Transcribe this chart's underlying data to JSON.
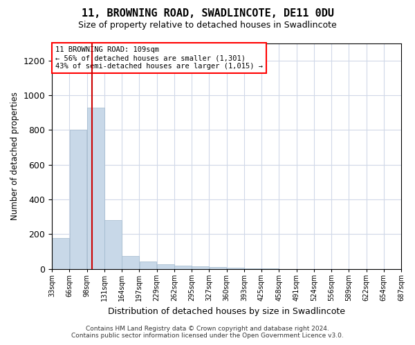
{
  "title": "11, BROWNING ROAD, SWADLINCOTE, DE11 0DU",
  "subtitle": "Size of property relative to detached houses in Swadlincote",
  "xlabel": "Distribution of detached houses by size in Swadlincote",
  "ylabel": "Number of detached properties",
  "annotation_line1": "11 BROWNING ROAD: 109sqm",
  "annotation_line2": "← 56% of detached houses are smaller (1,301)",
  "annotation_line3": "43% of semi-detached houses are larger (1,015) →",
  "footer1": "Contains HM Land Registry data © Crown copyright and database right 2024.",
  "footer2": "Contains public sector information licensed under the Open Government Licence v3.0.",
  "bar_color": "#c8d8e8",
  "bar_edgecolor": "#a0b8cc",
  "vline_color": "#cc0000",
  "vline_x": 109,
  "bin_starts": [
    33,
    66,
    99,
    132,
    165,
    198,
    231,
    264,
    297,
    330,
    363,
    396,
    429,
    462,
    495,
    528,
    561,
    594,
    627,
    660
  ],
  "bin_labels": [
    "33sqm",
    "66sqm",
    "98sqm",
    "131sqm",
    "164sqm",
    "197sqm",
    "229sqm",
    "262sqm",
    "295sqm",
    "327sqm",
    "360sqm",
    "393sqm",
    "425sqm",
    "458sqm",
    "491sqm",
    "524sqm",
    "556sqm",
    "589sqm",
    "622sqm",
    "654sqm",
    "687sqm"
  ],
  "bar_heights": [
    180,
    800,
    930,
    280,
    75,
    45,
    28,
    18,
    15,
    10,
    7,
    3,
    2,
    1,
    1,
    1,
    0,
    0,
    0,
    0
  ],
  "xlim_left": 33,
  "xlim_right": 693,
  "ylim": [
    0,
    1300
  ],
  "yticks": [
    0,
    200,
    400,
    600,
    800,
    1000,
    1200
  ],
  "background_color": "#ffffff",
  "grid_color": "#d0d8e8"
}
